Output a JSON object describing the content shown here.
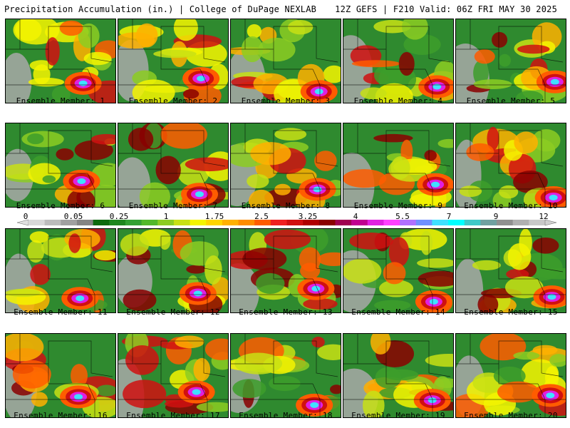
{
  "header": {
    "title": "Precipitation Accumulation (in.) | College of DuPage NEXLAB",
    "valid": "12Z GEFS | F210 Valid: 06Z FRI MAY 30 2025"
  },
  "members": [
    {
      "label": "Ensemble Member: 1"
    },
    {
      "label": "Ensemble Member: 2"
    },
    {
      "label": "Ensemble Member: 3"
    },
    {
      "label": "Ensemble Member: 4"
    },
    {
      "label": "Ensemble Member: 5"
    },
    {
      "label": "Ensemble Member: 6"
    },
    {
      "label": "Ensemble Member: 7"
    },
    {
      "label": "Ensemble Member: 8"
    },
    {
      "label": "Ensemble Member: 9"
    },
    {
      "label": "Ensemble Member: 10"
    },
    {
      "label": "Ensemble Member: 11"
    },
    {
      "label": "Ensemble Member: 12"
    },
    {
      "label": "Ensemble Member: 13"
    },
    {
      "label": "Ensemble Member: 14"
    },
    {
      "label": "Ensemble Member: 15"
    },
    {
      "label": "Ensemble Member: 16"
    },
    {
      "label": "Ensemble Member: 17"
    },
    {
      "label": "Ensemble Member: 18"
    },
    {
      "label": "Ensemble Member: 19"
    },
    {
      "label": "Ensemble Member: 20"
    }
  ],
  "colorbar": {
    "labels": [
      "0",
      "0.05",
      "0.25",
      "1",
      "1.75",
      "2.5",
      "3.25",
      "4",
      "5.5",
      "7",
      "9",
      "12"
    ],
    "colors": [
      "#d8d8d8",
      "#bcbcbc",
      "#a0a0a0",
      "#848484",
      "#0d6a0d",
      "#1f861f",
      "#33a033",
      "#52b82a",
      "#8ccc22",
      "#c8e014",
      "#f4f400",
      "#ffd400",
      "#ffb000",
      "#ff8c00",
      "#ff5c00",
      "#f02020",
      "#d01010",
      "#b00000",
      "#8a0000",
      "#a00050",
      "#c00090",
      "#e020e0",
      "#ff40ff",
      "#b070ff",
      "#7090ff",
      "#40e0ff",
      "#00ffff",
      "#40c8c8",
      "#70a0a0",
      "#909090",
      "#b0b0b0",
      "#c8c8c8"
    ]
  }
}
